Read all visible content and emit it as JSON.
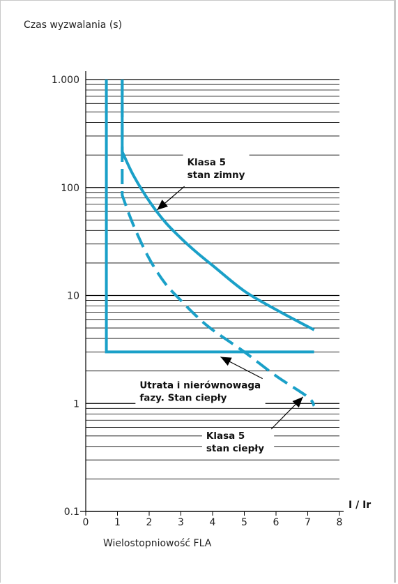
{
  "chart_data": {
    "type": "line",
    "title": "Czas wyzwalania (s)",
    "xlabel": "Wielostopniowość FLA",
    "x_unit_label": "I / Ir",
    "ylabel": "Czas wyzwalania (s)",
    "yscale": "log",
    "xlim": [
      0,
      8
    ],
    "ylim": [
      0.1,
      1000
    ],
    "x_ticks": [
      "0",
      "1",
      "2",
      "3",
      "4",
      "5",
      "6",
      "7",
      "8"
    ],
    "y_ticks": [
      {
        "value": 0.1,
        "label": "0.1"
      },
      {
        "value": 1,
        "label": "1"
      },
      {
        "value": 10,
        "label": "10"
      },
      {
        "value": 100,
        "label": "100"
      },
      {
        "value": 1000,
        "label": "1.000"
      }
    ],
    "grid": true,
    "series": [
      {
        "name": "Klasa 5 stan zimny",
        "style": "solid",
        "color": "#1aa0c8",
        "x": [
          1.15,
          1.15,
          1.5,
          2.0,
          2.5,
          3.0,
          3.5,
          4.0,
          5.0,
          6.0,
          7.2
        ],
        "y": [
          1000,
          215,
          130,
          75,
          48,
          34,
          25,
          19,
          11,
          7.4,
          4.8
        ]
      },
      {
        "name": "Klasa 5 stan ciepły",
        "style": "dashed",
        "color": "#1aa0c8",
        "x": [
          1.15,
          1.15,
          1.5,
          2.0,
          2.5,
          3.0,
          3.5,
          4.0,
          5.0,
          6.0,
          7.0,
          7.2
        ],
        "y": [
          1000,
          85,
          45,
          22,
          13,
          9,
          6.4,
          4.8,
          3.0,
          1.8,
          1.15,
          0.95
        ]
      },
      {
        "name": "Utrata i nierównowaga fazy. Stan ciepły",
        "style": "solid",
        "color": "#1aa0c8",
        "x": [
          0.65,
          0.65,
          7.2
        ],
        "y": [
          1000,
          3,
          3
        ]
      }
    ],
    "annotations": [
      {
        "lines": [
          "Klasa 5",
          "stan zimny"
        ],
        "x": 3.2,
        "y": 160,
        "target": {
          "x": 2.25,
          "y": 62
        }
      },
      {
        "lines": [
          "Utrata i nierównowaga",
          "fazy. Stan ciepły"
        ],
        "x": 1.7,
        "y": 1.38,
        "target": {
          "x": 4.25,
          "y": 2.7
        }
      },
      {
        "lines": [
          "Klasa 5",
          "stan ciepły"
        ],
        "x": 3.8,
        "y": 0.47,
        "target": {
          "x": 6.85,
          "y": 1.15
        }
      }
    ]
  }
}
